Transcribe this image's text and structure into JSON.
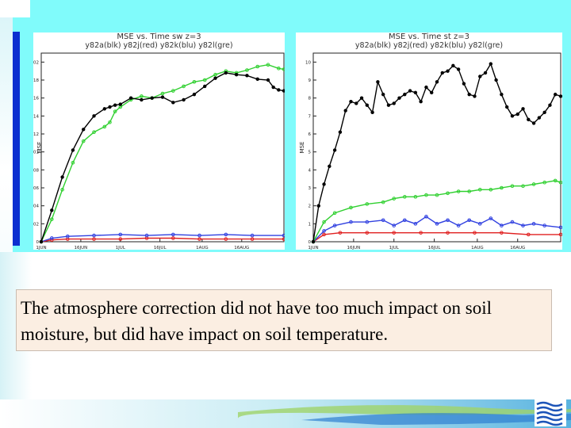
{
  "caption": {
    "text": "The atmosphere correction did not have too much impact on soil moisture, but did have impact on soil temperature."
  },
  "colors": {
    "blk": "#000000",
    "red": "#e02020",
    "blu": "#3040e0",
    "gre": "#30d030",
    "background": "#80fbfb",
    "accent_bar": "#0c2fd0",
    "caption_bg": "#fbeee2"
  },
  "chart_data": [
    {
      "type": "line",
      "title": "MSE vs. Time sw z=3",
      "subtitle": "y82a(blk) y82j(red) y82k(blu) y82l(gre)",
      "ylabel": "MSE",
      "xlabel": "",
      "x_ticks": [
        "1JUN\n1982",
        "16JUN",
        "1JUL",
        "16JUL",
        "1AUG",
        "16AUG"
      ],
      "x_tick_days": [
        0,
        15,
        30,
        45,
        61,
        76
      ],
      "xlim": [
        0,
        92
      ],
      "y_ticks": [
        "0",
        "0.002",
        "0.004",
        "0.006",
        "0.008",
        "0.01",
        "0.012",
        "0.014",
        "0.016",
        "0.018",
        "0.02"
      ],
      "ylim": [
        0,
        0.021
      ],
      "grid": false,
      "series": [
        {
          "name": "y82a",
          "color_key": "blk",
          "x": [
            0,
            4,
            8,
            12,
            16,
            20,
            24,
            26,
            28,
            30,
            34,
            38,
            42,
            46,
            50,
            54,
            58,
            62,
            66,
            70,
            74,
            78,
            82,
            86,
            88,
            90,
            92
          ],
          "y": [
            0,
            0.0035,
            0.0072,
            0.0102,
            0.0125,
            0.014,
            0.0148,
            0.015,
            0.0152,
            0.0153,
            0.016,
            0.0158,
            0.016,
            0.0161,
            0.0155,
            0.0158,
            0.0164,
            0.0173,
            0.0182,
            0.0188,
            0.0186,
            0.0185,
            0.0181,
            0.018,
            0.0172,
            0.0169,
            0.0168
          ]
        },
        {
          "name": "y82j",
          "color_key": "red",
          "x": [
            0,
            4,
            10,
            20,
            30,
            40,
            50,
            60,
            70,
            80,
            92
          ],
          "y": [
            0,
            0.0002,
            0.0003,
            0.0003,
            0.0003,
            0.0004,
            0.0004,
            0.0003,
            0.0003,
            0.0003,
            0.0003
          ]
        },
        {
          "name": "y82k",
          "color_key": "blu",
          "x": [
            0,
            4,
            10,
            20,
            30,
            40,
            50,
            60,
            70,
            80,
            92
          ],
          "y": [
            0,
            0.0004,
            0.0006,
            0.0007,
            0.0008,
            0.0007,
            0.0008,
            0.0007,
            0.0008,
            0.0007,
            0.0007
          ]
        },
        {
          "name": "y82l",
          "color_key": "gre",
          "x": [
            0,
            4,
            8,
            12,
            16,
            20,
            24,
            26,
            28,
            30,
            34,
            38,
            42,
            46,
            50,
            54,
            58,
            62,
            66,
            70,
            74,
            78,
            82,
            86,
            90,
            92
          ],
          "y": [
            0,
            0.0025,
            0.0058,
            0.0088,
            0.0112,
            0.0122,
            0.0128,
            0.0133,
            0.0145,
            0.015,
            0.0158,
            0.0162,
            0.016,
            0.0165,
            0.0168,
            0.0173,
            0.0178,
            0.018,
            0.0186,
            0.019,
            0.0188,
            0.0191,
            0.0195,
            0.0197,
            0.0193,
            0.0192
          ]
        }
      ]
    },
    {
      "type": "line",
      "title": "MSE vs. Time st z=3",
      "subtitle": "y82a(blk) y82j(red) y82k(blu) y82l(gre)",
      "ylabel": "MSE",
      "xlabel": "",
      "x_ticks": [
        "1JUN\n1982",
        "16JUN",
        "1JUL",
        "16JUL",
        "1AUG",
        "16AUG"
      ],
      "x_tick_days": [
        0,
        15,
        30,
        45,
        61,
        76
      ],
      "xlim": [
        0,
        92
      ],
      "y_ticks": [
        "0",
        "1",
        "2",
        "3",
        "4",
        "5",
        "6",
        "7",
        "8",
        "9",
        "10"
      ],
      "ylim": [
        0,
        10.5
      ],
      "grid": false,
      "series": [
        {
          "name": "y82a",
          "color_key": "blk",
          "x": [
            0,
            2,
            4,
            6,
            8,
            10,
            12,
            14,
            16,
            18,
            20,
            22,
            24,
            26,
            28,
            30,
            32,
            34,
            36,
            38,
            40,
            42,
            44,
            46,
            48,
            50,
            52,
            54,
            56,
            58,
            60,
            62,
            64,
            66,
            68,
            70,
            72,
            74,
            76,
            78,
            80,
            82,
            84,
            86,
            88,
            90,
            92
          ],
          "y": [
            0,
            2.0,
            3.2,
            4.2,
            5.1,
            6.1,
            7.3,
            7.8,
            7.7,
            8.0,
            7.6,
            7.2,
            8.9,
            8.2,
            7.6,
            7.7,
            8.0,
            8.2,
            8.4,
            8.3,
            7.8,
            8.6,
            8.3,
            8.9,
            9.4,
            9.5,
            9.8,
            9.6,
            8.8,
            8.2,
            8.1,
            9.2,
            9.4,
            9.9,
            9.0,
            8.2,
            7.5,
            7.0,
            7.1,
            7.4,
            6.8,
            6.6,
            6.9,
            7.2,
            7.6,
            8.2,
            8.1
          ]
        },
        {
          "name": "y82j",
          "color_key": "red",
          "x": [
            0,
            4,
            10,
            20,
            30,
            40,
            50,
            60,
            70,
            80,
            92
          ],
          "y": [
            0,
            0.4,
            0.5,
            0.5,
            0.5,
            0.5,
            0.5,
            0.5,
            0.5,
            0.4,
            0.4
          ]
        },
        {
          "name": "y82k",
          "color_key": "blu",
          "x": [
            0,
            4,
            8,
            14,
            20,
            26,
            30,
            34,
            38,
            42,
            46,
            50,
            54,
            58,
            62,
            66,
            70,
            74,
            78,
            82,
            86,
            92
          ],
          "y": [
            0,
            0.6,
            0.9,
            1.1,
            1.1,
            1.2,
            0.9,
            1.2,
            1.0,
            1.4,
            1.0,
            1.2,
            0.9,
            1.2,
            1.0,
            1.3,
            0.9,
            1.1,
            0.9,
            1.0,
            0.9,
            0.8
          ]
        },
        {
          "name": "y82l",
          "color_key": "gre",
          "x": [
            0,
            4,
            8,
            14,
            20,
            26,
            30,
            34,
            38,
            42,
            46,
            50,
            54,
            58,
            62,
            66,
            70,
            74,
            78,
            82,
            86,
            90,
            92
          ],
          "y": [
            0,
            1.1,
            1.6,
            1.9,
            2.1,
            2.2,
            2.4,
            2.5,
            2.5,
            2.6,
            2.6,
            2.7,
            2.8,
            2.8,
            2.9,
            2.9,
            3.0,
            3.1,
            3.1,
            3.2,
            3.3,
            3.4,
            3.3
          ]
        }
      ]
    }
  ]
}
